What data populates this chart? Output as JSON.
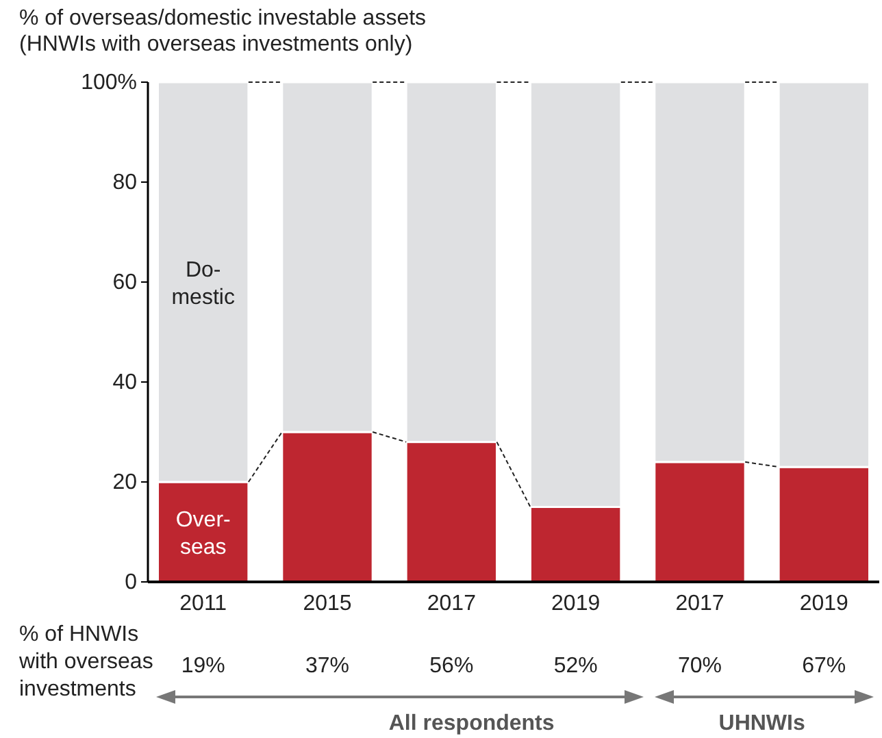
{
  "chart_data": {
    "type": "bar",
    "stacked": true,
    "title": "% of overseas/domestic investable assets\n(HNWIs with overseas investments only)",
    "categories": [
      "2011",
      "2015",
      "2017",
      "2019",
      "2017",
      "2019"
    ],
    "series": [
      {
        "name": "Over-\nseas",
        "color": "#be2630",
        "values": [
          20,
          30,
          28,
          15,
          24,
          23
        ]
      },
      {
        "name": "Do-\nmestic",
        "color": "#dfe0e2",
        "values": [
          80,
          70,
          72,
          85,
          76,
          77
        ]
      }
    ],
    "ylim": [
      0,
      100
    ],
    "yticks": [
      0,
      20,
      40,
      60,
      80,
      {
        "value": 100,
        "label": "100%"
      }
    ],
    "grid": false,
    "annotations": [
      "% of HNWIs\nwith overseas\ninvestments",
      "19%",
      "37%",
      "56%",
      "52%",
      "70%",
      "67%",
      "All respondents",
      "UHNWIs"
    ]
  }
}
